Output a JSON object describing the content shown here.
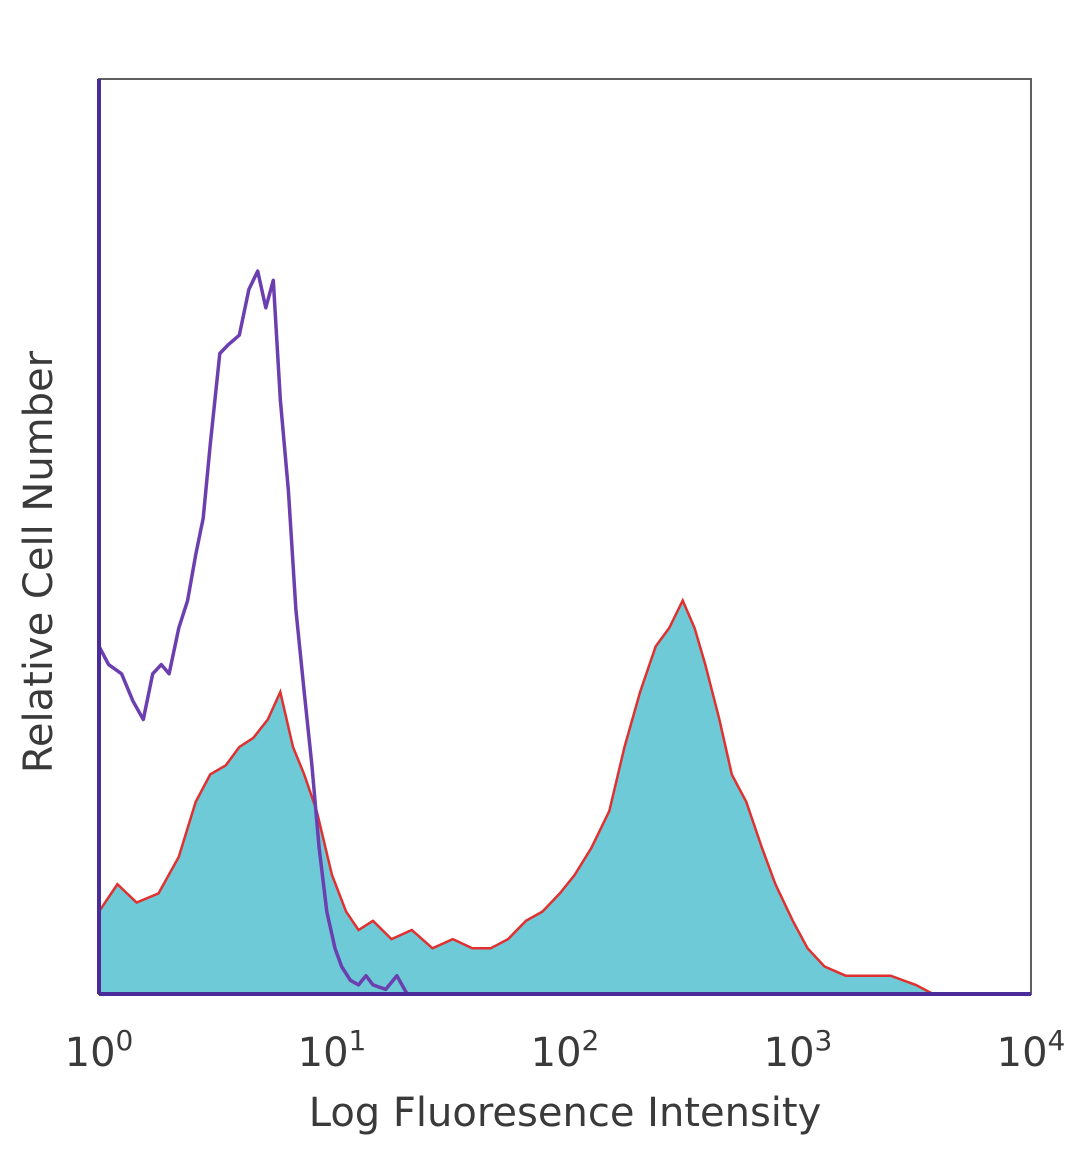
{
  "chart_data": {
    "type": "area",
    "title": "",
    "xlabel": "Log Fluoresence Intensity",
    "ylabel": "Relative Cell Number",
    "x_scale": "log",
    "xlim": [
      1,
      10000
    ],
    "ylim": [
      0,
      1
    ],
    "grid": false,
    "legend": "none",
    "x_ticks": [
      {
        "base": "10",
        "exp": "0",
        "value": 1
      },
      {
        "base": "10",
        "exp": "1",
        "value": 10
      },
      {
        "base": "10",
        "exp": "2",
        "value": 100
      },
      {
        "base": "10",
        "exp": "3",
        "value": 1000
      },
      {
        "base": "10",
        "exp": "4",
        "value": 10000
      }
    ],
    "series": [
      {
        "style": "filled-outline",
        "color": "#6ecad6",
        "outline_color": "#e03030",
        "x": [
          1,
          1.2,
          1.45,
          1.8,
          2.2,
          2.6,
          3.0,
          3.5,
          4.0,
          4.6,
          5.3,
          6.0,
          6.8,
          7.6,
          8.6,
          10,
          11.5,
          13,
          15,
          18,
          22,
          27,
          33,
          40,
          48,
          57,
          68,
          80,
          95,
          110,
          130,
          155,
          180,
          210,
          245,
          280,
          320,
          360,
          400,
          460,
          520,
          600,
          700,
          800,
          950,
          1100,
          1300,
          1600,
          2000,
          2500,
          3200,
          3800,
          4500
        ],
        "y": [
          0.09,
          0.12,
          0.1,
          0.11,
          0.15,
          0.21,
          0.24,
          0.25,
          0.27,
          0.28,
          0.3,
          0.33,
          0.27,
          0.24,
          0.2,
          0.13,
          0.09,
          0.07,
          0.08,
          0.06,
          0.07,
          0.05,
          0.06,
          0.05,
          0.05,
          0.06,
          0.08,
          0.09,
          0.11,
          0.13,
          0.16,
          0.2,
          0.27,
          0.33,
          0.38,
          0.4,
          0.43,
          0.4,
          0.36,
          0.3,
          0.24,
          0.21,
          0.16,
          0.12,
          0.08,
          0.05,
          0.03,
          0.02,
          0.02,
          0.02,
          0.01,
          0.0,
          0.0
        ]
      },
      {
        "style": "line",
        "color": "#6b3fb0",
        "x": [
          1,
          1.1,
          1.25,
          1.4,
          1.55,
          1.7,
          1.85,
          2.0,
          2.2,
          2.4,
          2.6,
          2.8,
          3.0,
          3.3,
          3.6,
          4.0,
          4.4,
          4.8,
          5.2,
          5.6,
          6.0,
          6.5,
          7.0,
          7.6,
          8.2,
          8.8,
          9.5,
          10.3,
          11,
          12,
          13,
          14,
          15,
          17,
          19,
          21,
          23,
          25
        ],
        "y": [
          0.38,
          0.36,
          0.35,
          0.32,
          0.3,
          0.35,
          0.36,
          0.35,
          0.4,
          0.43,
          0.48,
          0.52,
          0.6,
          0.7,
          0.71,
          0.72,
          0.77,
          0.79,
          0.75,
          0.78,
          0.65,
          0.55,
          0.42,
          0.33,
          0.25,
          0.16,
          0.09,
          0.05,
          0.03,
          0.015,
          0.01,
          0.02,
          0.01,
          0.005,
          0.02,
          0.0,
          0.0,
          0.0
        ]
      }
    ]
  }
}
